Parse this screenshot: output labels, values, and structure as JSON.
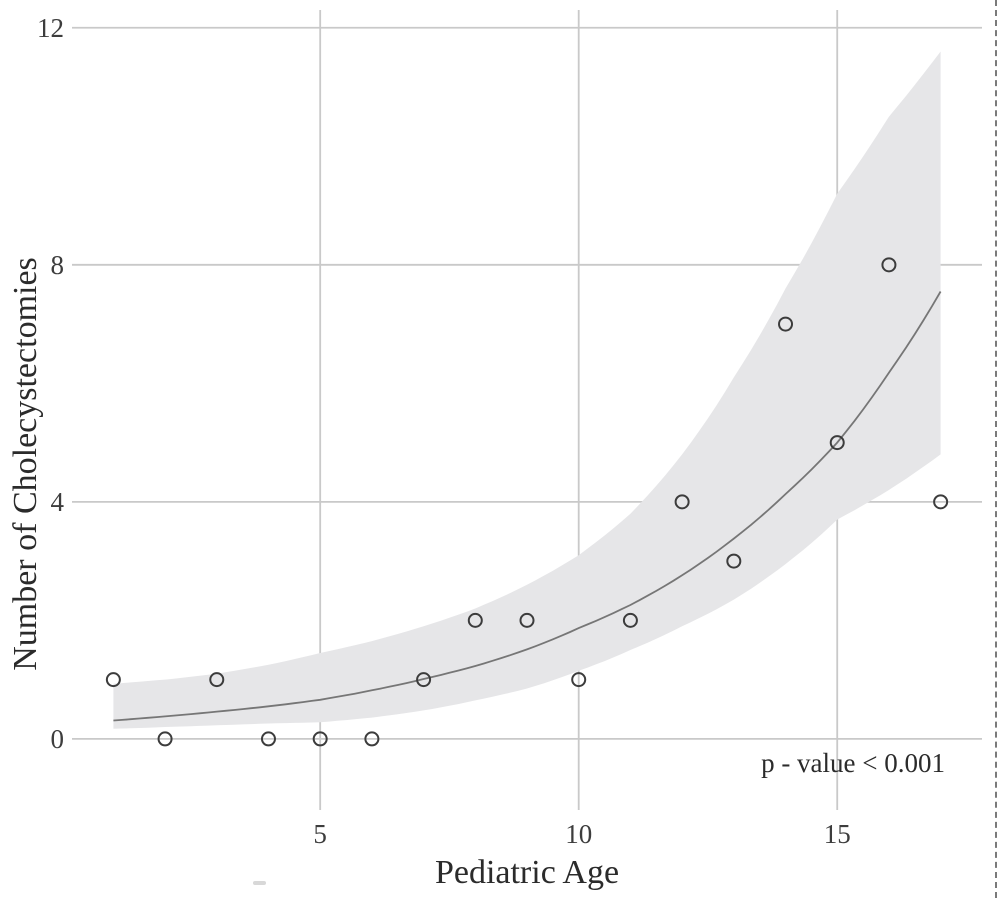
{
  "figure": {
    "background": "#ffffff",
    "y_axis_label": "Number of Cholecystectomies",
    "x_axis_label": "Pediatric Age",
    "annotation": "p - value < 0.001"
  },
  "chart_data": {
    "type": "scatter",
    "title": "",
    "xlabel": "Pediatric Age",
    "ylabel": "Number of Cholecystectomies",
    "annotation": "p - value < 0.001",
    "x_ticks": [
      5,
      10,
      15
    ],
    "y_ticks": [
      0,
      4,
      8,
      12
    ],
    "xlim": [
      0.2,
      17.8
    ],
    "ylim": [
      -1.2,
      12.3
    ],
    "grid": true,
    "legend": false,
    "points": {
      "x": [
        1,
        2,
        3,
        4,
        5,
        6,
        7,
        8,
        9,
        10,
        11,
        12,
        13,
        14,
        15,
        16,
        17
      ],
      "y": [
        1,
        0,
        1,
        0,
        0,
        0,
        1,
        2,
        2,
        1,
        2,
        4,
        3,
        7,
        5,
        8,
        4
      ]
    },
    "fit_line": {
      "x": [
        1,
        2,
        3,
        4,
        5,
        6,
        7,
        8,
        9,
        10,
        11,
        12,
        13,
        14,
        15,
        16,
        17
      ],
      "y": [
        0.31,
        0.38,
        0.46,
        0.55,
        0.66,
        0.82,
        1.01,
        1.23,
        1.51,
        1.87,
        2.26,
        2.76,
        3.38,
        4.13,
        5.0,
        6.18,
        7.55
      ]
    },
    "confidence_band": {
      "x": [
        1,
        2,
        3,
        4,
        5,
        6,
        7,
        8,
        9,
        10,
        11,
        12,
        13,
        14,
        15,
        16,
        17
      ],
      "upper": [
        0.93,
        1.0,
        1.1,
        1.25,
        1.45,
        1.65,
        1.9,
        2.2,
        2.6,
        3.1,
        3.8,
        4.8,
        6.1,
        7.6,
        9.2,
        10.5,
        11.6
      ],
      "lower": [
        0.17,
        0.2,
        0.23,
        0.26,
        0.28,
        0.36,
        0.48,
        0.65,
        0.85,
        1.15,
        1.5,
        1.9,
        2.35,
        2.95,
        3.7,
        4.2,
        4.8
      ]
    },
    "colors": {
      "grid": "#c9c9c9",
      "band": "#e6e6e8",
      "fit_line": "#767676",
      "point_stroke": "#3c3c3c",
      "text": "#2f2f2f",
      "border_dash": "#7a7a7a"
    }
  }
}
